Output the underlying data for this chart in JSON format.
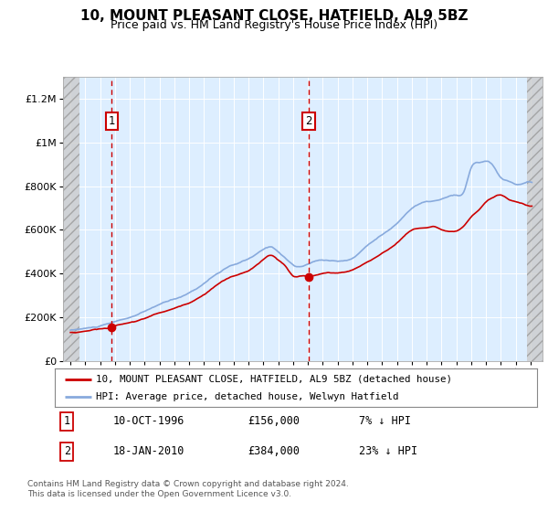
{
  "title": "10, MOUNT PLEASANT CLOSE, HATFIELD, AL9 5BZ",
  "subtitle": "Price paid vs. HM Land Registry's House Price Index (HPI)",
  "ylim": [
    0,
    1300000
  ],
  "yticks": [
    0,
    200000,
    400000,
    600000,
    800000,
    1000000,
    1200000
  ],
  "ytick_labels": [
    "£0",
    "£200K",
    "£400K",
    "£600K",
    "£800K",
    "£1M",
    "£1.2M"
  ],
  "plot_bg_color": "#ddeeff",
  "grid_color": "#ffffff",
  "purchase1": {
    "date_num": 1996.78,
    "price": 156000,
    "label": "1"
  },
  "purchase2": {
    "date_num": 2010.05,
    "price": 384000,
    "label": "2"
  },
  "legend1": "10, MOUNT PLEASANT CLOSE, HATFIELD, AL9 5BZ (detached house)",
  "legend2": "HPI: Average price, detached house, Welwyn Hatfield",
  "table_row1": [
    "1",
    "10-OCT-1996",
    "£156,000",
    "7% ↓ HPI"
  ],
  "table_row2": [
    "2",
    "18-JAN-2010",
    "£384,000",
    "23% ↓ HPI"
  ],
  "footer": "Contains HM Land Registry data © Crown copyright and database right 2024.\nThis data is licensed under the Open Government Licence v3.0.",
  "title_fontsize": 11,
  "subtitle_fontsize": 9,
  "red_color": "#cc0000",
  "blue_color": "#88aadd",
  "xmin": 1993.5,
  "xmax": 2025.8,
  "hatch_left_end": 1994.58,
  "hatch_right_start": 2024.75
}
